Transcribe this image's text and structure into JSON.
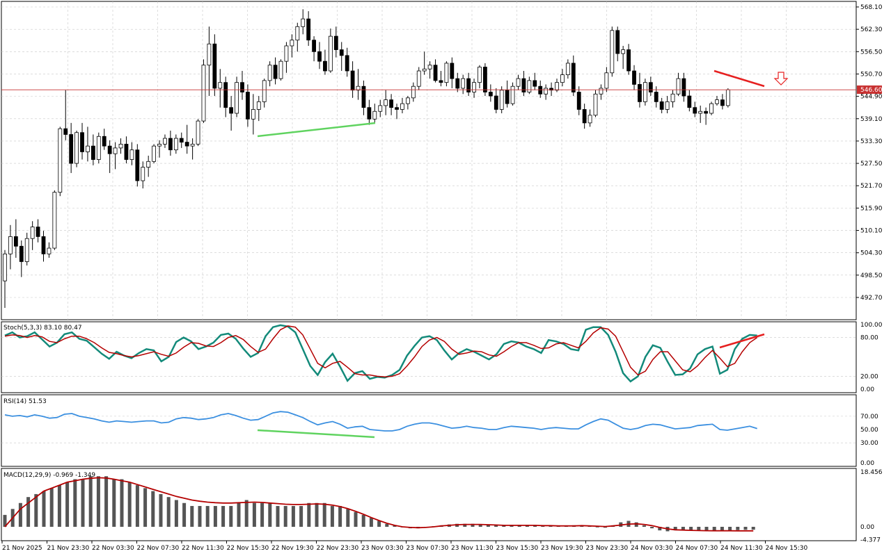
{
  "current_price_label": "546.60",
  "main_axis_ticks": [
    "568.10",
    "562.30",
    "556.50",
    "550.70",
    "544.90",
    "539.10",
    "533.30",
    "527.50",
    "521.70",
    "515.90",
    "510.10",
    "504.30",
    "498.50",
    "492.70"
  ],
  "time_labels": [
    "21 Nov 2025",
    "21 Nov 23:30",
    "22 Nov 03:30",
    "22 Nov 07:30",
    "22 Nov 11:30",
    "22 Nov 15:30",
    "22 Nov 19:30",
    "22 Nov 23:30",
    "23 Nov 03:30",
    "23 Nov 07:30",
    "23 Nov 11:30",
    "23 Nov 15:30",
    "23 Nov 19:30",
    "23 Nov 23:30",
    "24 Nov 03:30",
    "24 Nov 07:30",
    "24 Nov 11:30",
    "24 Nov 15:30"
  ],
  "stoch": {
    "label": "Stoch(5,3,3) 83.10 80.47",
    "ticks": [
      "100.00",
      "80.00",
      "20.00",
      "0.00"
    ]
  },
  "rsi": {
    "label": "RSI(14) 51.53",
    "ticks": [
      "70.00",
      "50.00",
      "30.00",
      "0.00"
    ]
  },
  "macd": {
    "label": "MACD(12,29,9) -0.969 -1.349",
    "ticks": [
      "18.456",
      "0.00",
      "-4.377"
    ]
  },
  "colors": {
    "bull_fill": "#ffffff",
    "bear_fill": "#000000",
    "price_line": "#c83232",
    "green_div": "#5fd35f",
    "red_div": "#e62020",
    "stoch_main": "#138a7a",
    "stoch_signal": "#b40000",
    "rsi": "#3a8fe0",
    "macd_hist": "#555555",
    "macd_signal": "#b40000"
  },
  "chart_data": {
    "type": "candlestick",
    "title": "",
    "y_range": [
      490.0,
      570.0
    ],
    "current_price": 546.6,
    "sell_arrow": "down",
    "candles": [
      {
        "o": 497.0,
        "h": 505.0,
        "l": 490.0,
        "c": 504.0
      },
      {
        "o": 504.0,
        "h": 511.5,
        "l": 500.0,
        "c": 508.5
      },
      {
        "o": 508.5,
        "h": 513.0,
        "l": 503.0,
        "c": 506.0
      },
      {
        "o": 506.0,
        "h": 507.5,
        "l": 498.0,
        "c": 502.0
      },
      {
        "o": 502.0,
        "h": 509.5,
        "l": 501.0,
        "c": 508.0
      },
      {
        "o": 508.0,
        "h": 512.5,
        "l": 505.0,
        "c": 511.0
      },
      {
        "o": 511.0,
        "h": 513.0,
        "l": 507.0,
        "c": 508.5
      },
      {
        "o": 508.5,
        "h": 510.0,
        "l": 502.0,
        "c": 504.0
      },
      {
        "o": 504.0,
        "h": 507.0,
        "l": 503.0,
        "c": 505.5
      },
      {
        "o": 505.5,
        "h": 520.5,
        "l": 505.0,
        "c": 520.0
      },
      {
        "o": 520.0,
        "h": 537.0,
        "l": 519.0,
        "c": 536.5
      },
      {
        "o": 536.5,
        "h": 546.5,
        "l": 533.5,
        "c": 535.0
      },
      {
        "o": 535.0,
        "h": 538.0,
        "l": 525.0,
        "c": 527.5
      },
      {
        "o": 527.5,
        "h": 536.0,
        "l": 526.5,
        "c": 535.5
      },
      {
        "o": 535.5,
        "h": 538.0,
        "l": 528.5,
        "c": 530.5
      },
      {
        "o": 530.5,
        "h": 537.0,
        "l": 528.0,
        "c": 532.0
      },
      {
        "o": 532.0,
        "h": 535.0,
        "l": 527.0,
        "c": 528.5
      },
      {
        "o": 528.5,
        "h": 535.5,
        "l": 527.5,
        "c": 534.5
      },
      {
        "o": 534.5,
        "h": 536.5,
        "l": 531.0,
        "c": 532.0
      },
      {
        "o": 532.0,
        "h": 533.5,
        "l": 525.0,
        "c": 530.0
      },
      {
        "o": 530.0,
        "h": 533.0,
        "l": 526.0,
        "c": 531.5
      },
      {
        "o": 531.5,
        "h": 534.0,
        "l": 530.0,
        "c": 532.5
      },
      {
        "o": 532.5,
        "h": 534.5,
        "l": 527.5,
        "c": 528.5
      },
      {
        "o": 528.5,
        "h": 533.0,
        "l": 527.0,
        "c": 531.0
      },
      {
        "o": 531.0,
        "h": 532.5,
        "l": 521.5,
        "c": 523.0
      },
      {
        "o": 523.0,
        "h": 528.0,
        "l": 521.0,
        "c": 526.5
      },
      {
        "o": 526.5,
        "h": 529.5,
        "l": 524.0,
        "c": 528.0
      },
      {
        "o": 528.0,
        "h": 532.5,
        "l": 527.5,
        "c": 532.0
      },
      {
        "o": 532.0,
        "h": 533.5,
        "l": 529.0,
        "c": 532.5
      },
      {
        "o": 532.5,
        "h": 535.0,
        "l": 531.5,
        "c": 534.0
      },
      {
        "o": 534.0,
        "h": 536.0,
        "l": 529.5,
        "c": 531.0
      },
      {
        "o": 531.0,
        "h": 535.0,
        "l": 530.0,
        "c": 534.0
      },
      {
        "o": 534.0,
        "h": 535.5,
        "l": 531.5,
        "c": 533.0
      },
      {
        "o": 533.0,
        "h": 537.5,
        "l": 530.0,
        "c": 532.0
      },
      {
        "o": 532.0,
        "h": 534.0,
        "l": 528.5,
        "c": 532.5
      },
      {
        "o": 532.5,
        "h": 539.0,
        "l": 532.0,
        "c": 538.5
      },
      {
        "o": 538.5,
        "h": 554.5,
        "l": 538.0,
        "c": 553.0
      },
      {
        "o": 553.0,
        "h": 563.0,
        "l": 545.0,
        "c": 558.5
      },
      {
        "o": 558.5,
        "h": 561.0,
        "l": 545.0,
        "c": 547.0
      },
      {
        "o": 547.0,
        "h": 552.0,
        "l": 542.0,
        "c": 548.5
      },
      {
        "o": 548.5,
        "h": 550.0,
        "l": 539.5,
        "c": 542.0
      },
      {
        "o": 542.0,
        "h": 545.0,
        "l": 536.0,
        "c": 540.5
      },
      {
        "o": 540.5,
        "h": 550.0,
        "l": 539.5,
        "c": 548.5
      },
      {
        "o": 548.5,
        "h": 551.5,
        "l": 544.0,
        "c": 546.0
      },
      {
        "o": 546.0,
        "h": 548.0,
        "l": 537.0,
        "c": 539.0
      },
      {
        "o": 539.0,
        "h": 545.5,
        "l": 535.0,
        "c": 541.5
      },
      {
        "o": 541.5,
        "h": 545.0,
        "l": 538.5,
        "c": 543.5
      },
      {
        "o": 543.5,
        "h": 549.5,
        "l": 542.0,
        "c": 549.0
      },
      {
        "o": 549.0,
        "h": 554.0,
        "l": 547.5,
        "c": 553.0
      },
      {
        "o": 553.0,
        "h": 555.0,
        "l": 548.0,
        "c": 549.5
      },
      {
        "o": 549.5,
        "h": 554.5,
        "l": 549.0,
        "c": 554.0
      },
      {
        "o": 554.0,
        "h": 559.0,
        "l": 551.0,
        "c": 558.0
      },
      {
        "o": 558.0,
        "h": 561.0,
        "l": 555.0,
        "c": 559.5
      },
      {
        "o": 559.5,
        "h": 564.0,
        "l": 556.5,
        "c": 563.0
      },
      {
        "o": 563.0,
        "h": 567.5,
        "l": 561.0,
        "c": 565.0
      },
      {
        "o": 565.0,
        "h": 567.0,
        "l": 558.0,
        "c": 559.5
      },
      {
        "o": 559.5,
        "h": 560.5,
        "l": 554.0,
        "c": 556.5
      },
      {
        "o": 556.5,
        "h": 559.0,
        "l": 552.0,
        "c": 554.0
      },
      {
        "o": 554.0,
        "h": 557.0,
        "l": 550.5,
        "c": 551.5
      },
      {
        "o": 551.5,
        "h": 562.5,
        "l": 551.0,
        "c": 560.5
      },
      {
        "o": 560.5,
        "h": 563.0,
        "l": 555.0,
        "c": 557.0
      },
      {
        "o": 557.0,
        "h": 559.0,
        "l": 551.5,
        "c": 555.5
      },
      {
        "o": 555.5,
        "h": 557.5,
        "l": 550.0,
        "c": 551.5
      },
      {
        "o": 551.5,
        "h": 554.0,
        "l": 544.5,
        "c": 546.5
      },
      {
        "o": 546.5,
        "h": 552.0,
        "l": 544.0,
        "c": 547.5
      },
      {
        "o": 547.5,
        "h": 549.0,
        "l": 540.0,
        "c": 542.0
      },
      {
        "o": 542.0,
        "h": 544.0,
        "l": 537.5,
        "c": 539.0
      },
      {
        "o": 539.0,
        "h": 543.0,
        "l": 538.0,
        "c": 541.0
      },
      {
        "o": 541.0,
        "h": 544.0,
        "l": 539.5,
        "c": 542.5
      },
      {
        "o": 542.5,
        "h": 546.5,
        "l": 540.0,
        "c": 544.0
      },
      {
        "o": 544.0,
        "h": 545.5,
        "l": 540.0,
        "c": 542.0
      },
      {
        "o": 542.0,
        "h": 543.0,
        "l": 539.0,
        "c": 541.5
      },
      {
        "o": 541.5,
        "h": 544.5,
        "l": 540.5,
        "c": 543.0
      },
      {
        "o": 543.0,
        "h": 545.0,
        "l": 541.5,
        "c": 544.5
      },
      {
        "o": 544.5,
        "h": 548.5,
        "l": 543.5,
        "c": 547.5
      },
      {
        "o": 547.5,
        "h": 552.5,
        "l": 546.5,
        "c": 551.5
      },
      {
        "o": 551.5,
        "h": 556.5,
        "l": 550.5,
        "c": 552.0
      },
      {
        "o": 552.0,
        "h": 554.0,
        "l": 549.5,
        "c": 553.0
      },
      {
        "o": 553.0,
        "h": 554.5,
        "l": 548.5,
        "c": 549.0
      },
      {
        "o": 549.0,
        "h": 551.5,
        "l": 547.5,
        "c": 548.5
      },
      {
        "o": 548.5,
        "h": 554.0,
        "l": 547.5,
        "c": 553.5
      },
      {
        "o": 553.5,
        "h": 555.0,
        "l": 547.0,
        "c": 549.5
      },
      {
        "o": 549.5,
        "h": 551.0,
        "l": 546.0,
        "c": 547.0
      },
      {
        "o": 547.0,
        "h": 550.5,
        "l": 545.5,
        "c": 549.5
      },
      {
        "o": 549.5,
        "h": 551.0,
        "l": 545.0,
        "c": 546.0
      },
      {
        "o": 546.0,
        "h": 549.5,
        "l": 544.5,
        "c": 548.5
      },
      {
        "o": 548.5,
        "h": 553.0,
        "l": 547.0,
        "c": 552.5
      },
      {
        "o": 552.5,
        "h": 553.5,
        "l": 545.0,
        "c": 546.0
      },
      {
        "o": 546.0,
        "h": 548.0,
        "l": 543.5,
        "c": 545.0
      },
      {
        "o": 545.0,
        "h": 547.0,
        "l": 540.5,
        "c": 541.5
      },
      {
        "o": 541.5,
        "h": 547.5,
        "l": 540.5,
        "c": 546.5
      },
      {
        "o": 546.5,
        "h": 549.0,
        "l": 542.0,
        "c": 543.0
      },
      {
        "o": 543.0,
        "h": 548.5,
        "l": 542.5,
        "c": 547.5
      },
      {
        "o": 547.5,
        "h": 550.5,
        "l": 546.5,
        "c": 549.5
      },
      {
        "o": 549.5,
        "h": 551.5,
        "l": 545.0,
        "c": 546.0
      },
      {
        "o": 546.0,
        "h": 550.0,
        "l": 545.5,
        "c": 549.0
      },
      {
        "o": 549.0,
        "h": 551.0,
        "l": 546.5,
        "c": 547.5
      },
      {
        "o": 547.5,
        "h": 549.0,
        "l": 544.5,
        "c": 545.5
      },
      {
        "o": 545.5,
        "h": 548.0,
        "l": 544.0,
        "c": 547.0
      },
      {
        "o": 547.0,
        "h": 548.5,
        "l": 545.0,
        "c": 546.5
      },
      {
        "o": 546.5,
        "h": 549.5,
        "l": 546.0,
        "c": 548.5
      },
      {
        "o": 548.5,
        "h": 552.0,
        "l": 547.5,
        "c": 550.5
      },
      {
        "o": 550.5,
        "h": 554.5,
        "l": 549.5,
        "c": 553.5
      },
      {
        "o": 553.5,
        "h": 555.5,
        "l": 545.0,
        "c": 546.0
      },
      {
        "o": 546.0,
        "h": 547.5,
        "l": 540.0,
        "c": 541.5
      },
      {
        "o": 541.5,
        "h": 543.0,
        "l": 536.5,
        "c": 538.0
      },
      {
        "o": 538.0,
        "h": 541.5,
        "l": 537.0,
        "c": 540.0
      },
      {
        "o": 540.0,
        "h": 546.5,
        "l": 539.5,
        "c": 545.5
      },
      {
        "o": 545.5,
        "h": 548.0,
        "l": 544.0,
        "c": 547.0
      },
      {
        "o": 547.0,
        "h": 552.5,
        "l": 546.0,
        "c": 551.0
      },
      {
        "o": 551.0,
        "h": 563.0,
        "l": 550.0,
        "c": 562.0
      },
      {
        "o": 562.0,
        "h": 563.0,
        "l": 554.0,
        "c": 556.0
      },
      {
        "o": 556.0,
        "h": 558.0,
        "l": 552.0,
        "c": 557.0
      },
      {
        "o": 557.0,
        "h": 558.5,
        "l": 550.5,
        "c": 551.5
      },
      {
        "o": 551.5,
        "h": 553.0,
        "l": 546.5,
        "c": 548.0
      },
      {
        "o": 548.0,
        "h": 551.0,
        "l": 542.0,
        "c": 543.5
      },
      {
        "o": 543.5,
        "h": 549.5,
        "l": 542.5,
        "c": 548.5
      },
      {
        "o": 548.5,
        "h": 550.0,
        "l": 545.0,
        "c": 546.0
      },
      {
        "o": 546.0,
        "h": 547.5,
        "l": 542.0,
        "c": 543.5
      },
      {
        "o": 543.5,
        "h": 544.5,
        "l": 540.5,
        "c": 541.5
      },
      {
        "o": 541.5,
        "h": 545.0,
        "l": 540.5,
        "c": 543.5
      },
      {
        "o": 543.5,
        "h": 546.5,
        "l": 542.0,
        "c": 545.5
      },
      {
        "o": 545.5,
        "h": 551.0,
        "l": 545.0,
        "c": 549.5
      },
      {
        "o": 549.5,
        "h": 551.0,
        "l": 543.5,
        "c": 545.0
      },
      {
        "o": 545.0,
        "h": 546.5,
        "l": 541.0,
        "c": 542.0
      },
      {
        "o": 542.0,
        "h": 543.5,
        "l": 539.5,
        "c": 540.5
      },
      {
        "o": 540.5,
        "h": 542.5,
        "l": 538.0,
        "c": 541.0
      },
      {
        "o": 541.0,
        "h": 542.0,
        "l": 537.5,
        "c": 540.5
      },
      {
        "o": 540.5,
        "h": 543.5,
        "l": 540.0,
        "c": 543.0
      },
      {
        "o": 543.0,
        "h": 545.0,
        "l": 542.5,
        "c": 544.0
      },
      {
        "o": 544.0,
        "h": 545.5,
        "l": 541.5,
        "c": 542.5
      },
      {
        "o": 542.5,
        "h": 547.0,
        "l": 542.0,
        "c": 546.6
      }
    ],
    "stoch_main": [
      83,
      88,
      80,
      82,
      88,
      77,
      66,
      72,
      85,
      88,
      78,
      75,
      65,
      55,
      47,
      58,
      52,
      48,
      56,
      62,
      60,
      43,
      50,
      73,
      80,
      74,
      62,
      66,
      72,
      84,
      86,
      78,
      63,
      50,
      56,
      82,
      96,
      99,
      97,
      88,
      62,
      36,
      22,
      42,
      55,
      35,
      13,
      25,
      28,
      16,
      19,
      18,
      22,
      30,
      52,
      67,
      80,
      82,
      76,
      60,
      46,
      56,
      62,
      58,
      52,
      46,
      54,
      70,
      74,
      72,
      66,
      62,
      56,
      76,
      74,
      70,
      62,
      60,
      92,
      96,
      96,
      84,
      58,
      25,
      12,
      20,
      50,
      68,
      64,
      42,
      22,
      23,
      32,
      54,
      62,
      66,
      24,
      30,
      62,
      78,
      84,
      83
    ],
    "stoch_signal": [
      82,
      84,
      83,
      80,
      83,
      81,
      74,
      72,
      78,
      82,
      82,
      78,
      72,
      64,
      57,
      55,
      52,
      50,
      52,
      55,
      58,
      54,
      51,
      56,
      65,
      72,
      71,
      67,
      66,
      72,
      80,
      83,
      77,
      66,
      57,
      62,
      78,
      92,
      98,
      96,
      84,
      62,
      40,
      33,
      40,
      43,
      34,
      24,
      22,
      22,
      20,
      19,
      20,
      24,
      36,
      50,
      66,
      76,
      80,
      74,
      62,
      54,
      56,
      59,
      58,
      53,
      51,
      58,
      66,
      72,
      72,
      68,
      63,
      64,
      70,
      72,
      68,
      64,
      74,
      87,
      95,
      93,
      82,
      58,
      34,
      22,
      28,
      46,
      58,
      58,
      44,
      30,
      27,
      36,
      49,
      60,
      48,
      35,
      40,
      58,
      72,
      80
    ],
    "rsi": [
      72,
      70,
      71,
      69,
      72,
      70,
      67,
      68,
      73,
      74,
      70,
      68,
      66,
      63,
      61,
      63,
      62,
      61,
      62,
      63,
      63,
      60,
      61,
      66,
      68,
      67,
      65,
      66,
      68,
      72,
      74,
      71,
      67,
      64,
      65,
      70,
      75,
      77,
      76,
      72,
      68,
      62,
      57,
      60,
      62,
      58,
      52,
      54,
      55,
      50,
      49,
      48,
      48,
      50,
      55,
      58,
      60,
      60,
      58,
      55,
      52,
      53,
      55,
      53,
      52,
      50,
      50,
      53,
      55,
      54,
      53,
      52,
      50,
      52,
      53,
      52,
      51,
      51,
      57,
      62,
      66,
      64,
      58,
      52,
      50,
      52,
      56,
      58,
      57,
      54,
      51,
      52,
      53,
      56,
      57,
      58,
      50,
      49,
      51,
      53,
      55,
      51.5
    ],
    "macd_hist": [
      4,
      6,
      8,
      10,
      11,
      12,
      13,
      14,
      15,
      16,
      16,
      17,
      17,
      17,
      16,
      16,
      15,
      14,
      13,
      12,
      11,
      10,
      9,
      8,
      7,
      7,
      7,
      7,
      7,
      7,
      8,
      9,
      8,
      8,
      8,
      7,
      7,
      7,
      7,
      8,
      8,
      8,
      7,
      7,
      6,
      5,
      4,
      3,
      2,
      1,
      0.5,
      0,
      -0.5,
      -0.5,
      -0.3,
      0.2,
      0.5,
      0.8,
      1,
      1,
      1,
      0.8,
      0.6,
      0.5,
      0.5,
      0.5,
      0.5,
      0.5,
      0.5,
      0.4,
      0.3,
      0.2,
      0.3,
      0.5,
      0.5,
      0.3,
      0,
      -0.3,
      0.5,
      1.5,
      2,
      1.5,
      0.5,
      -0.5,
      -1.2,
      -1.5,
      -1.2,
      -1,
      -1.1,
      -1.2,
      -1.3,
      -1.3,
      -1.2,
      -1.2,
      -1.1,
      -1.0,
      -0.97
    ],
    "macd_signal": [
      0,
      3,
      6,
      8,
      10,
      12,
      13,
      14,
      15,
      15.5,
      16,
      16.3,
      16.5,
      16.4,
      16,
      15.5,
      15,
      14.2,
      13.4,
      12.6,
      11.8,
      11,
      10.2,
      9.6,
      9,
      8.6,
      8.3,
      8.1,
      8,
      8,
      8.1,
      8.2,
      8.3,
      8.2,
      8,
      7.8,
      7.6,
      7.5,
      7.5,
      7.6,
      7.7,
      7.6,
      7.3,
      6.8,
      6.1,
      5.2,
      4.2,
      3.1,
      2.1,
      1.2,
      0.5,
      0,
      -0.2,
      -0.3,
      -0.2,
      0,
      0.3,
      0.5,
      0.7,
      0.8,
      0.8,
      0.8,
      0.7,
      0.6,
      0.5,
      0.5,
      0.5,
      0.5,
      0.5,
      0.4,
      0.4,
      0.3,
      0.3,
      0.3,
      0.4,
      0.3,
      0.2,
      0.1,
      0.3,
      0.6,
      0.9,
      1.0,
      0.8,
      0.4,
      -0.2,
      -0.7,
      -1.0,
      -1.1,
      -1.2,
      -1.25,
      -1.3,
      -1.32,
      -1.33,
      -1.34,
      -1.35,
      -1.35,
      -1.349
    ]
  }
}
